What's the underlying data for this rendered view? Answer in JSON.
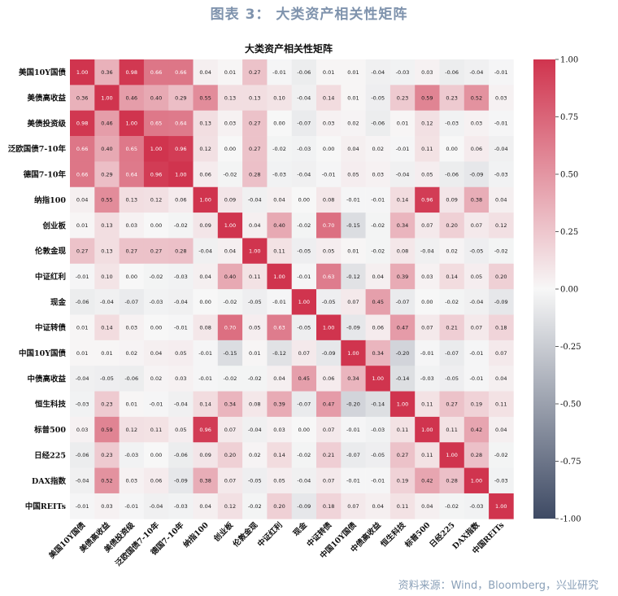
{
  "figure_title": "图表 3： 大类资产相关性矩阵",
  "source": "资料来源：Wind，Bloomberg，兴业研究",
  "chart_data": {
    "type": "heatmap",
    "title": "大类资产相关性矩阵",
    "labels": [
      "美国10Y国债",
      "美债高收益",
      "美债投资级",
      "泛欧国债7-10年",
      "德国7-10年",
      "纳指100",
      "创业板",
      "伦敦金现",
      "中证红利",
      "现金",
      "中证转债",
      "中国10Y国债",
      "中债高收益",
      "恒生科技",
      "标普500",
      "日经225",
      "DAX指数",
      "中国REITs"
    ],
    "matrix": [
      [
        1.0,
        0.36,
        0.98,
        0.66,
        0.66,
        0.04,
        0.01,
        0.27,
        -0.01,
        -0.06,
        0.01,
        0.01,
        -0.04,
        -0.03,
        0.03,
        -0.06,
        -0.04,
        -0.01
      ],
      [
        0.36,
        1.0,
        0.46,
        0.4,
        0.29,
        0.55,
        0.13,
        0.13,
        0.1,
        -0.04,
        0.14,
        0.01,
        -0.05,
        0.23,
        0.59,
        0.23,
        0.52,
        0.03
      ],
      [
        0.98,
        0.46,
        1.0,
        0.65,
        0.64,
        0.13,
        0.03,
        0.27,
        -0.0,
        -0.07,
        0.03,
        0.02,
        -0.06,
        0.01,
        0.12,
        -0.03,
        0.03,
        -0.01
      ],
      [
        0.66,
        0.4,
        0.65,
        1.0,
        0.96,
        0.12,
        -0.0,
        0.27,
        -0.02,
        -0.03,
        0.0,
        0.04,
        0.02,
        -0.01,
        0.11,
        -0.0,
        0.06,
        -0.04
      ],
      [
        0.66,
        0.29,
        0.64,
        0.96,
        1.0,
        0.06,
        -0.02,
        0.28,
        -0.03,
        -0.04,
        -0.01,
        0.05,
        0.03,
        -0.04,
        0.05,
        -0.06,
        -0.09,
        -0.03
      ],
      [
        0.04,
        0.55,
        0.13,
        0.12,
        0.06,
        1.0,
        0.09,
        -0.04,
        0.04,
        0.0,
        0.08,
        -0.01,
        -0.01,
        0.14,
        0.96,
        0.09,
        0.38,
        0.04
      ],
      [
        0.01,
        0.13,
        0.03,
        -0.0,
        -0.02,
        0.09,
        1.0,
        0.04,
        0.4,
        -0.02,
        0.7,
        -0.15,
        -0.02,
        0.34,
        0.07,
        0.2,
        0.07,
        0.12
      ],
      [
        0.27,
        0.13,
        0.27,
        0.27,
        0.28,
        -0.04,
        0.04,
        1.0,
        0.11,
        -0.05,
        0.05,
        0.01,
        -0.02,
        0.08,
        -0.04,
        0.02,
        -0.05,
        -0.02
      ],
      [
        -0.01,
        0.1,
        -0.0,
        -0.02,
        -0.03,
        0.04,
        0.4,
        0.11,
        1.0,
        -0.01,
        0.63,
        -0.12,
        0.04,
        0.39,
        0.03,
        0.14,
        0.05,
        0.2
      ],
      [
        -0.06,
        -0.04,
        -0.07,
        -0.03,
        -0.04,
        0.0,
        -0.02,
        -0.05,
        -0.01,
        1.0,
        -0.05,
        0.07,
        0.45,
        -0.07,
        0.0,
        -0.02,
        -0.04,
        -0.09
      ],
      [
        0.01,
        0.14,
        0.03,
        0.0,
        -0.01,
        0.08,
        0.7,
        0.05,
        0.63,
        -0.05,
        1.0,
        -0.09,
        0.06,
        0.47,
        0.07,
        0.21,
        0.07,
        0.18
      ],
      [
        0.01,
        0.01,
        0.02,
        0.04,
        0.05,
        -0.01,
        -0.15,
        0.01,
        -0.12,
        0.07,
        -0.09,
        1.0,
        0.34,
        -0.2,
        -0.01,
        -0.07,
        -0.01,
        0.07
      ],
      [
        -0.04,
        -0.05,
        -0.06,
        0.02,
        0.03,
        -0.01,
        -0.02,
        -0.02,
        0.04,
        0.45,
        0.06,
        0.34,
        1.0,
        -0.14,
        -0.03,
        -0.05,
        -0.01,
        0.04
      ],
      [
        -0.03,
        0.23,
        0.01,
        -0.01,
        -0.04,
        0.14,
        0.34,
        0.08,
        0.39,
        -0.07,
        0.47,
        -0.2,
        -0.14,
        1.0,
        0.11,
        0.27,
        0.19,
        0.11
      ],
      [
        0.03,
        0.59,
        0.12,
        0.11,
        0.05,
        0.96,
        0.07,
        -0.04,
        0.03,
        0.0,
        0.07,
        -0.01,
        -0.03,
        0.11,
        1.0,
        0.11,
        0.42,
        0.04
      ],
      [
        -0.06,
        0.23,
        -0.03,
        -0.0,
        -0.06,
        0.09,
        0.2,
        0.02,
        0.14,
        -0.02,
        0.21,
        -0.07,
        -0.05,
        0.27,
        0.11,
        1.0,
        0.28,
        -0.02
      ],
      [
        -0.04,
        0.52,
        0.03,
        0.06,
        -0.09,
        0.38,
        0.07,
        -0.05,
        0.05,
        -0.04,
        0.07,
        -0.01,
        -0.01,
        0.19,
        0.42,
        0.28,
        1.0,
        -0.03
      ],
      [
        -0.01,
        0.03,
        -0.01,
        -0.04,
        -0.03,
        0.04,
        0.12,
        -0.02,
        0.2,
        -0.09,
        0.18,
        0.07,
        0.04,
        0.11,
        0.04,
        -0.02,
        -0.03,
        1.0
      ]
    ],
    "colorbar": {
      "range": [
        -1.0,
        1.0
      ],
      "ticks": [
        1.0,
        0.75,
        0.5,
        0.25,
        0.0,
        -0.25,
        -0.5,
        -0.75,
        -1.0
      ],
      "tick_labels": [
        "1.00",
        "0.75",
        "0.50",
        "0.25",
        "0.00",
        "-0.25",
        "-0.50",
        "-0.75",
        "-1.00"
      ],
      "colors": {
        "high": "#d0344e",
        "mid": "#f7f7f7",
        "low": "#3e4a64"
      }
    }
  }
}
